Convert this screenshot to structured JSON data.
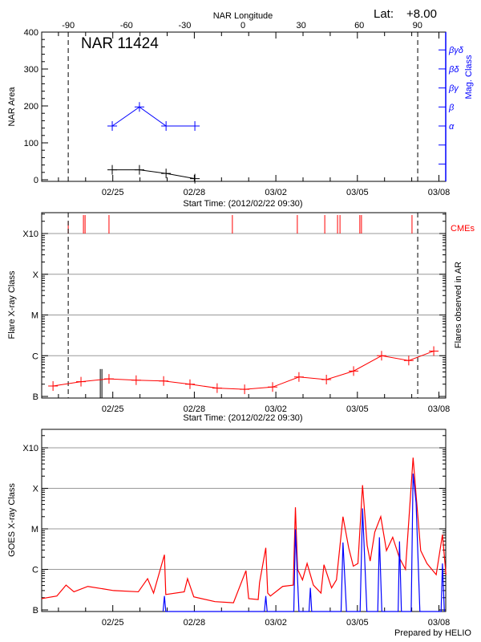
{
  "chart_data": [
    {
      "type": "line",
      "panel": "nar",
      "title": "NAR 11424",
      "lat_label": "Lat:",
      "lat_value": "+8.00",
      "top_xlabel": "NAR Longitude",
      "top_xticks": [
        "-90",
        "-60",
        "-30",
        "0",
        "30",
        "60",
        "90"
      ],
      "top_xtick_values": [
        -90,
        -60,
        -30,
        0,
        30,
        60,
        90
      ],
      "xlabel": "Start Time: (2012/02/22 09:30)",
      "xticks": [
        "02/25",
        "02/28",
        "03/02",
        "03/05",
        "03/08"
      ],
      "xtick_days": [
        3,
        6,
        9,
        12,
        15
      ],
      "xlim_days": [
        0.38,
        15.26
      ],
      "ylabel": "NAR Area",
      "yticks": [
        "0",
        "100",
        "200",
        "300",
        "400"
      ],
      "ylim": [
        0,
        400
      ],
      "y2label": "Mag. Class",
      "y2ticks": [
        "α",
        "β",
        "βγ",
        "βδ",
        "βγδ"
      ],
      "limb_lines_days": [
        1.36,
        14.22
      ],
      "series": [
        {
          "name": "NAR Area",
          "color": "#000000",
          "days": [
            2.98,
            3.98,
            4.96,
            6.02
          ],
          "values": [
            27,
            27,
            17,
            3
          ]
        },
        {
          "name": "Mag. Class",
          "color": "#0000ff",
          "days": [
            2.98,
            3.98,
            4.96,
            6.02
          ],
          "values": [
            "α",
            "β",
            "α",
            "α"
          ]
        }
      ]
    },
    {
      "type": "line",
      "panel": "flares",
      "ylabel": "Flare X-ray Class",
      "y2label": "Flares observed in AR",
      "cme_label": "CMEs",
      "xlabel": "Start Time: (2012/02/22 09:30)",
      "xticks": [
        "02/25",
        "02/28",
        "03/02",
        "03/05",
        "03/08"
      ],
      "yticks": [
        "B",
        "C",
        "M",
        "X",
        "X10"
      ],
      "ylim_flux": [
        1e-07,
        0.001
      ],
      "limb_lines_days": [
        1.36,
        14.22
      ],
      "cme_days": [
        1.36,
        1.92,
        1.98,
        2.86,
        7.4,
        9.79,
        10.8,
        11.27,
        11.36,
        12.09,
        12.15,
        14.01
      ],
      "flares_observed": {
        "days": [
          2.54,
          2.6
        ],
        "flux": [
          4.5e-07,
          4.5e-07
        ]
      },
      "series": [
        {
          "name": "Flare class",
          "color": "#ff0000",
          "days": [
            0.8,
            1.83,
            2.86,
            3.86,
            4.87,
            5.84,
            6.84,
            7.85,
            8.88,
            9.85,
            10.86,
            11.86,
            12.89,
            13.89,
            14.81
          ],
          "flux": [
            1.8e-07,
            2.3e-07,
            2.7e-07,
            2.5e-07,
            2.4e-07,
            2e-07,
            1.6e-07,
            1.5e-07,
            1.7e-07,
            3e-07,
            2.6e-07,
            4.2e-07,
            1e-06,
            7.6e-07,
            1.3e-06
          ]
        }
      ]
    },
    {
      "type": "line",
      "panel": "goes",
      "ylabel": "GOES X-ray Class",
      "xticks": [
        "02/25",
        "02/28",
        "03/02",
        "03/05",
        "03/08"
      ],
      "yticks": [
        "B",
        "C",
        "M",
        "X",
        "X10"
      ],
      "ylim_flux": [
        1e-07,
        0.001
      ],
      "footer": "Prepared by HELIO",
      "series": [
        {
          "name": "GOES long",
          "color": "#ff0000",
          "days": [
            0.38,
            0.94,
            1.28,
            1.57,
            2.08,
            3.03,
            3.94,
            4.28,
            4.5,
            4.9,
            4.95,
            5.63,
            5.75,
            5.98,
            6.76,
            7.44,
            7.9,
            8.0,
            8.35,
            8.4,
            8.63,
            8.7,
            8.8,
            9.25,
            9.64,
            9.72,
            9.8,
            9.98,
            10.15,
            10.38,
            10.66,
            10.77,
            11.05,
            11.23,
            11.47,
            11.68,
            11.85,
            12.02,
            12.19,
            12.36,
            12.47,
            12.64,
            12.86,
            13.07,
            13.3,
            13.55,
            13.77,
            14.05,
            14.16,
            14.33,
            14.56,
            14.9,
            15.13,
            15.26
          ],
          "flux": [
            1.9e-07,
            2.2e-07,
            4.1e-07,
            2.8e-07,
            3.8e-07,
            3e-07,
            2.8e-07,
            5.9e-07,
            2.6e-07,
            2.3e-06,
            2.4e-07,
            2.8e-07,
            5.9e-07,
            2.1e-07,
            1.6e-07,
            1.5e-07,
            9.3e-07,
            1.9e-07,
            1.8e-07,
            4.7e-07,
            3.4e-06,
            2.6e-07,
            2.2e-07,
            3.8e-07,
            4.1e-07,
            3.4e-05,
            1e-06,
            5.5e-07,
            1.4e-06,
            4.1e-07,
            2.6e-07,
            1.3e-06,
            3.5e-07,
            5.5e-07,
            2e-05,
            3.4e-06,
            1.2e-06,
            1.4e-06,
            0.00012,
            3.9e-06,
            1.6e-06,
            8.3e-06,
            2e-05,
            2.9e-06,
            6.2e-06,
            1.9e-06,
            1e-06,
            0.00057,
            6.9e-05,
            2.9e-06,
            1.4e-06,
            7.4e-07,
            7.2e-06,
            7.4e-07
          ]
        },
        {
          "name": "GOES short",
          "color": "#0000ff",
          "days": [
            4.85,
            4.9,
            4.95,
            8.58,
            8.63,
            8.68,
            9.66,
            9.72,
            9.85,
            10.22,
            10.27,
            10.32,
            11.4,
            11.47,
            11.6,
            12.1,
            12.19,
            12.35,
            12.75,
            12.81,
            12.9,
            13.5,
            13.55,
            13.62,
            13.98,
            14.05,
            14.16,
            14.3,
            15.08,
            15.13,
            15.2
          ],
          "flux": [
            1e-08,
            2.2e-07,
            1e-08,
            1e-08,
            2.2e-07,
            1e-08,
            1e-08,
            9.7e-06,
            1e-08,
            1e-08,
            3.5e-07,
            1e-08,
            1e-08,
            4.6e-06,
            1e-08,
            1e-08,
            3.2e-05,
            1e-08,
            1e-08,
            6.2e-06,
            1e-08,
            1e-08,
            4.9e-06,
            1e-08,
            1e-08,
            0.00023,
            4.4e-05,
            1e-08,
            1e-08,
            1.4e-06,
            1e-08
          ]
        }
      ]
    }
  ]
}
